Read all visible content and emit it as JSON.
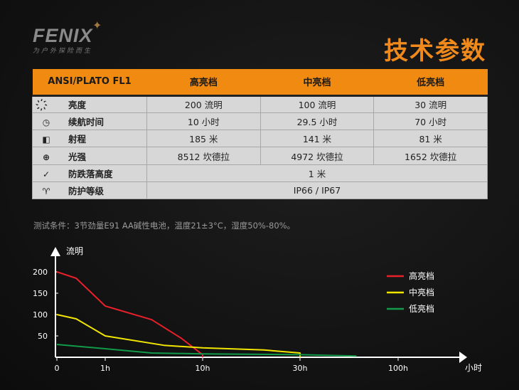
{
  "brand": {
    "name": "FENIX",
    "slogan": "为户外探险而生"
  },
  "title": "技术参数",
  "table": {
    "headers": [
      "ANSI/PLATO FL1",
      "高亮档",
      "中亮档",
      "低亮档"
    ],
    "rows": [
      {
        "icon": "brightness-icon",
        "label": "亮度",
        "values": [
          "200 流明",
          "100 流明",
          "30 流明"
        ]
      },
      {
        "icon": "clock-icon",
        "label": "续航时间",
        "values": [
          "10 小时",
          "29.5 小时",
          "70 小时"
        ]
      },
      {
        "icon": "beam-distance-icon",
        "label": "射程",
        "values": [
          "185 米",
          "141 米",
          "81 米"
        ]
      },
      {
        "icon": "intensity-target-icon",
        "label": "光强",
        "values": [
          "8512 坎德拉",
          "4972 坎德拉",
          "1652 坎德拉"
        ]
      },
      {
        "icon": "impact-resistance-icon",
        "label": "防跌落高度",
        "values": [
          "1 米"
        ]
      },
      {
        "icon": "waterproof-icon",
        "label": "防护等级",
        "values": [
          "IP66 / IP67"
        ]
      }
    ]
  },
  "note": "测试条件：3节劲量E91 AA碱性电池，温度21±3°C，湿度50%-80%。",
  "chart_data": {
    "type": "line",
    "ylabel": "流明",
    "xlabel": "小时",
    "yticks": [
      200,
      150,
      100,
      50
    ],
    "xticks": [
      "0",
      "1h",
      "10h",
      "30h",
      "100h"
    ],
    "xtick_values": [
      0,
      1,
      10,
      30,
      100
    ],
    "ylim": [
      0,
      230
    ],
    "legend_position": "right",
    "series": [
      {
        "name": "高亮档",
        "color": "#e8202a",
        "points": [
          [
            0,
            200
          ],
          [
            0.4,
            185
          ],
          [
            1,
            120
          ],
          [
            3,
            88
          ],
          [
            6,
            45
          ],
          [
            10,
            6
          ],
          [
            10,
            0
          ]
        ]
      },
      {
        "name": "中亮档",
        "color": "#f2e600",
        "points": [
          [
            0,
            100
          ],
          [
            0.4,
            90
          ],
          [
            1,
            50
          ],
          [
            4,
            28
          ],
          [
            10,
            22
          ],
          [
            20,
            17
          ],
          [
            30,
            10
          ],
          [
            30,
            0
          ]
        ]
      },
      {
        "name": "低亮档",
        "color": "#119a4a",
        "points": [
          [
            0,
            30
          ],
          [
            1,
            20
          ],
          [
            3,
            10
          ],
          [
            10,
            8
          ],
          [
            30,
            6
          ],
          [
            60,
            3
          ]
        ]
      }
    ]
  }
}
